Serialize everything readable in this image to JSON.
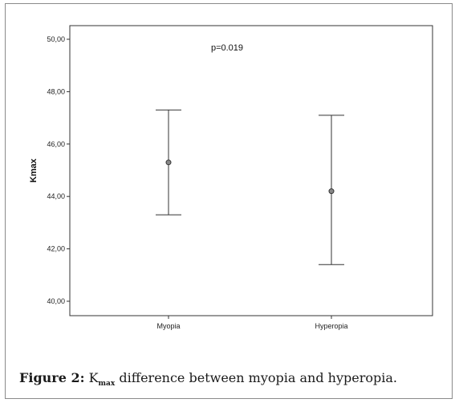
{
  "chart_data": {
    "type": "scatter",
    "subtype": "error-bar",
    "categories": [
      "Myopia",
      "Hyperopia"
    ],
    "series": [
      {
        "mean": [
          45.3,
          44.2
        ],
        "lower": [
          43.3,
          41.4
        ],
        "upper": [
          47.3,
          47.1
        ]
      }
    ],
    "ylabel": "Kmax",
    "xlabel": "",
    "ylim": [
      40.0,
      50.0
    ],
    "yticks": [
      40.0,
      42.0,
      44.0,
      46.0,
      48.0,
      50.0
    ],
    "ytick_labels": [
      "40,00",
      "42,00",
      "44,00",
      "46,00",
      "48,00",
      "50,00"
    ],
    "annotation": "p=0.019",
    "grid": false,
    "legend": "none"
  },
  "caption": {
    "label": "Figure 2:",
    "k_letter": "K",
    "k_subscript": "max",
    "rest": " difference between myopia and hyperopia."
  }
}
